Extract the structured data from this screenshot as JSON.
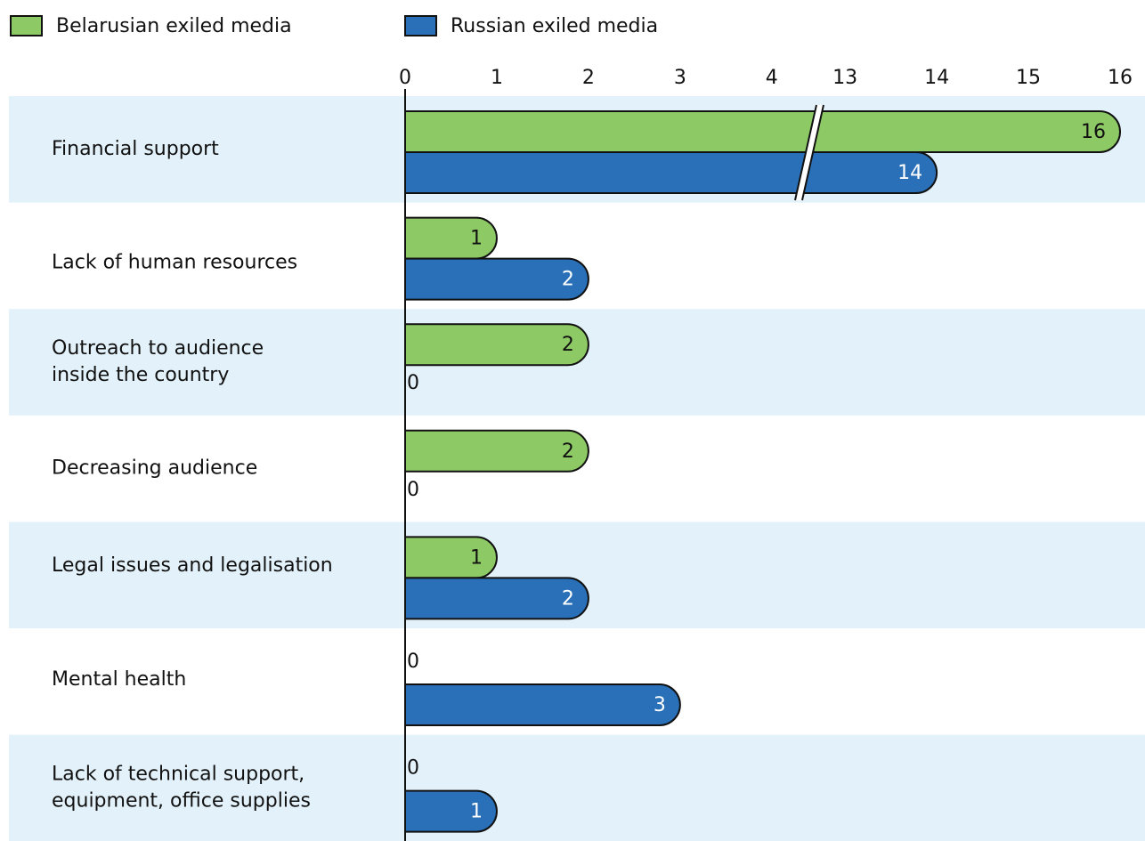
{
  "chart_data": {
    "type": "bar",
    "orientation": "horizontal",
    "categories": [
      "Financial support",
      "Lack of human resources",
      "Outreach to audience\ninside the country",
      "Decreasing audience",
      "Legal issues and legalisation",
      "Mental health",
      "Lack of technical support,\nequipment, office supplies"
    ],
    "series": [
      {
        "name": "Belarusian exiled media",
        "color": "#8dc965",
        "label_color": "#111111",
        "values": [
          16,
          1,
          2,
          2,
          1,
          0,
          0
        ]
      },
      {
        "name": "Russian exiled media",
        "color": "#2a70b8",
        "label_color": "#ffffff",
        "values": [
          14,
          2,
          0,
          0,
          2,
          3,
          1
        ]
      }
    ],
    "xlim": [
      0,
      16
    ],
    "xbreak": [
      4.4,
      12.6
    ],
    "xticks": [
      0,
      1,
      2,
      3,
      4,
      13,
      14,
      15,
      16
    ],
    "band_color": "#e3f2fa",
    "legend": "top-left"
  }
}
